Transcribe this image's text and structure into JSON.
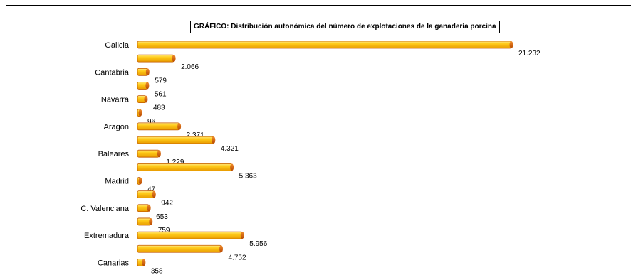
{
  "chart_data": {
    "type": "bar",
    "orientation": "horizontal",
    "title": "GRÁFICO: Distribución autonómica del número de explotaciones de la ganadería porcina",
    "categories": [
      "Galicia",
      "",
      "Cantabria",
      "",
      "Navarra",
      "",
      "Aragón",
      "",
      "Baleares",
      "",
      "Madrid",
      "",
      "C. Valenciana",
      "",
      "Extremadura",
      "",
      "Canarias"
    ],
    "value_labels": [
      "21.232",
      "2.066",
      "579",
      "561",
      "483",
      "96",
      "2.371",
      "4.321",
      "1.229",
      "5.363",
      "47",
      "942",
      "653",
      "759",
      "5.956",
      "4.752",
      "358"
    ],
    "values": [
      21232,
      2066,
      579,
      561,
      483,
      96,
      2371,
      4321,
      1229,
      5363,
      47,
      942,
      653,
      759,
      5956,
      4752,
      358
    ],
    "xlim": [
      0,
      21232
    ],
    "grid": false,
    "legend": "none",
    "bar_color": "#f2b705",
    "bar_highlight": "#ffe066",
    "bar_edge": "#c25a00"
  }
}
